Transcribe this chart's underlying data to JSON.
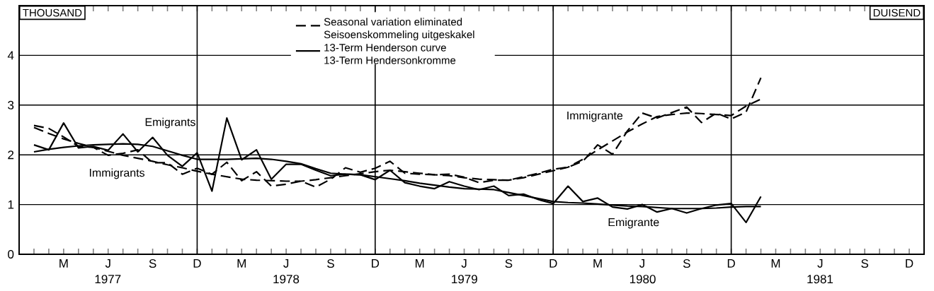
{
  "chart_data": {
    "type": "line",
    "ylabel": "THOUSAND",
    "y2label": "DUISEND",
    "ylim": [
      0,
      5
    ],
    "yticks": [
      0,
      1,
      2,
      3,
      4
    ],
    "categories": [
      null,
      null,
      "M",
      null,
      null,
      "J",
      null,
      null,
      "S",
      null,
      null,
      "D",
      null,
      null,
      "M",
      null,
      null,
      "J",
      null,
      null,
      "S",
      null,
      null,
      "D",
      null,
      null,
      "M",
      null,
      null,
      "J",
      null,
      null,
      "S",
      null,
      null,
      "D",
      null,
      null,
      "M",
      null,
      null,
      "J",
      null,
      null,
      "S",
      null,
      null,
      "D",
      null,
      null,
      "M",
      null,
      null,
      "J",
      null,
      null,
      "S",
      null,
      null,
      "D"
    ],
    "series": [
      {
        "color": "#000000",
        "line_style": "solid",
        "values": [
          2.2,
          2.1,
          2.64,
          2.14,
          2.17,
          2.09,
          2.42,
          2.06,
          2.35,
          1.99,
          1.77,
          2.04,
          1.27,
          2.74,
          1.9,
          2.1,
          1.51,
          1.81,
          1.81,
          1.69,
          1.58,
          1.61,
          1.6,
          1.5,
          1.69,
          1.44,
          1.37,
          1.32,
          1.46,
          1.37,
          1.3,
          1.37,
          1.18,
          1.21,
          1.1,
          1.02,
          1.37,
          1.06,
          1.13,
          0.95,
          0.91,
          1.0,
          0.85,
          0.92,
          0.83,
          0.92,
          0.99,
          1.02,
          0.64,
          1.16,
          null,
          null,
          null,
          null,
          null,
          null,
          null,
          null,
          null,
          null
        ]
      },
      {
        "name": "Seasonal variation eliminated Seisoenskommeling uitgeskakel",
        "color": "#000000",
        "line_style": "dashed",
        "values": [
          2.59,
          2.53,
          2.36,
          2.17,
          2.15,
          1.99,
          2.03,
          2.1,
          1.84,
          1.84,
          1.61,
          1.73,
          1.61,
          1.85,
          1.48,
          1.66,
          1.37,
          1.41,
          1.47,
          1.35,
          1.51,
          1.74,
          1.65,
          1.73,
          1.87,
          1.63,
          1.61,
          1.6,
          1.61,
          1.55,
          1.44,
          1.49,
          1.49,
          1.56,
          1.63,
          1.71,
          1.75,
          1.87,
          2.2,
          2.01,
          2.48,
          2.84,
          2.74,
          2.85,
          2.96,
          2.65,
          2.84,
          2.72,
          2.86,
          3.55,
          null,
          null,
          null,
          null,
          null,
          null,
          null,
          null,
          null,
          null
        ]
      },
      {
        "name": "13-Term Henderson curve 13-Term Hendersonkromme",
        "color": "#000000",
        "line_style": "solid",
        "values": [
          2.06,
          2.11,
          2.15,
          2.18,
          2.2,
          2.21,
          2.22,
          2.21,
          2.17,
          2.08,
          1.99,
          1.91,
          1.91,
          1.91,
          1.92,
          1.93,
          1.91,
          1.87,
          1.82,
          1.72,
          1.63,
          1.61,
          1.6,
          1.56,
          1.52,
          1.48,
          1.43,
          1.39,
          1.35,
          1.32,
          1.31,
          1.3,
          1.24,
          1.18,
          1.12,
          1.06,
          1.04,
          1.03,
          1.01,
          0.99,
          0.97,
          0.96,
          0.94,
          0.92,
          0.92,
          0.92,
          0.93,
          0.95,
          0.96,
          0.96,
          null,
          null,
          null,
          null,
          null,
          null,
          null,
          null,
          null,
          null
        ]
      },
      {
        "color": "#000000",
        "line_style": "dashed",
        "values": [
          2.55,
          2.43,
          2.32,
          2.23,
          2.15,
          2.07,
          1.99,
          1.93,
          1.87,
          1.8,
          1.74,
          1.67,
          1.61,
          1.56,
          1.51,
          1.49,
          1.48,
          1.47,
          1.47,
          1.5,
          1.54,
          1.58,
          1.62,
          1.66,
          1.69,
          1.66,
          1.63,
          1.6,
          1.58,
          1.54,
          1.51,
          1.5,
          1.49,
          1.54,
          1.61,
          1.68,
          1.75,
          1.91,
          2.1,
          2.28,
          2.46,
          2.62,
          2.77,
          2.81,
          2.84,
          2.83,
          2.81,
          2.79,
          2.98,
          3.12,
          null,
          null,
          null,
          null,
          null,
          null,
          null,
          null,
          null,
          null
        ]
      }
    ],
    "annotations": [
      "Emigrants",
      "Immigrants",
      "Immigrante",
      "Emigrante",
      "1977",
      "1978",
      "1979",
      "1980",
      "1981"
    ],
    "grid": true,
    "legend": "top"
  }
}
